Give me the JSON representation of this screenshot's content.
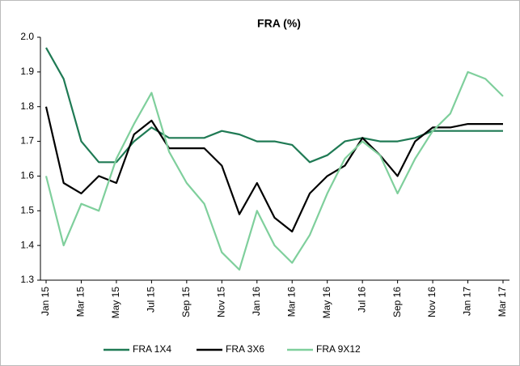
{
  "chart_data": {
    "type": "line",
    "title": "FRA (%)",
    "categories": [
      "Jan 15",
      null,
      "Mar 15",
      null,
      "May 15",
      null,
      "Jul 15",
      null,
      "Sep 15",
      null,
      "Nov 15",
      null,
      "Jan 16",
      null,
      "Mar 16",
      null,
      "May 16",
      null,
      "Jul 16",
      null,
      "Sep 16",
      null,
      "Nov 16",
      null,
      "Jan 17",
      null,
      "Mar 17"
    ],
    "series": [
      {
        "name": "FRA 1X4",
        "color": "#1f7a54",
        "values": [
          1.97,
          1.88,
          1.7,
          1.64,
          1.64,
          1.7,
          1.74,
          1.71,
          1.71,
          1.71,
          1.73,
          1.72,
          1.7,
          1.7,
          1.69,
          1.64,
          1.66,
          1.7,
          1.71,
          1.7,
          1.7,
          1.71,
          1.73,
          1.73,
          1.73,
          1.73,
          1.73
        ]
      },
      {
        "name": "FRA 3X6",
        "color": "#000000",
        "values": [
          1.8,
          1.58,
          1.55,
          1.6,
          1.58,
          1.72,
          1.76,
          1.68,
          1.68,
          1.68,
          1.63,
          1.49,
          1.58,
          1.48,
          1.44,
          1.55,
          1.6,
          1.63,
          1.71,
          1.66,
          1.6,
          1.7,
          1.74,
          1.74,
          1.75,
          1.75,
          1.75
        ]
      },
      {
        "name": "FRA 9X12",
        "color": "#7fcf9c",
        "values": [
          1.6,
          1.4,
          1.52,
          1.5,
          1.65,
          1.75,
          1.84,
          1.67,
          1.58,
          1.52,
          1.38,
          1.33,
          1.5,
          1.4,
          1.35,
          1.43,
          1.55,
          1.65,
          1.7,
          1.66,
          1.55,
          1.65,
          1.73,
          1.78,
          1.9,
          1.88,
          1.83
        ]
      }
    ],
    "ylim": [
      1.3,
      2.0
    ],
    "yticks": [
      {
        "value": 1.3,
        "label": "1.3"
      },
      {
        "value": 1.4,
        "label": "1.4"
      },
      {
        "value": 1.5,
        "label": "1.5"
      },
      {
        "value": 1.6,
        "label": "1.6"
      },
      {
        "value": 1.7,
        "label": "1.7"
      },
      {
        "value": 1.8,
        "label": "1.8"
      },
      {
        "value": 1.9,
        "label": "1.9"
      },
      {
        "value": 2.0,
        "label": "2.0"
      }
    ],
    "grid": false
  }
}
